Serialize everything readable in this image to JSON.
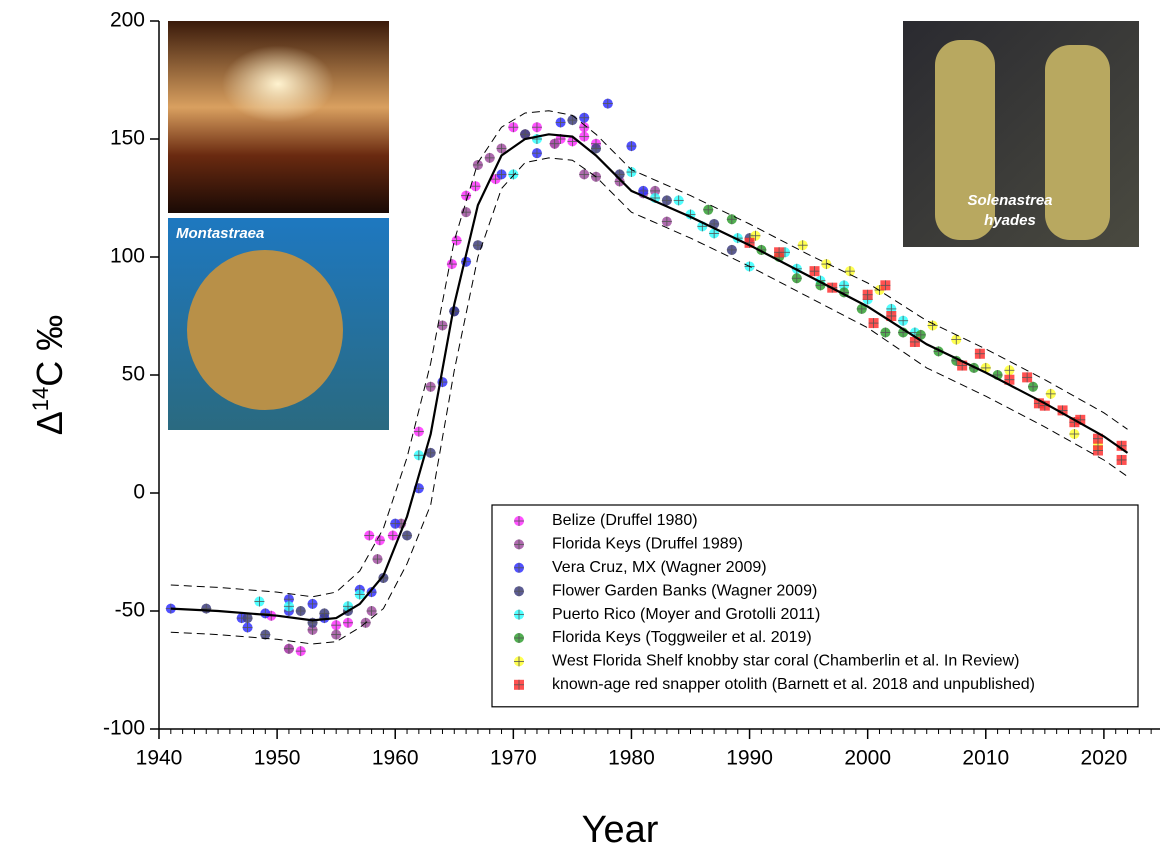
{
  "chart_data": {
    "type": "scatter",
    "xlabel": "Year",
    "ylabel_parts": [
      "Δ",
      "14",
      "C ‰"
    ],
    "annotations": [
      "Montastraea",
      "Solenastrea",
      "hyades"
    ],
    "xlim": [
      1940,
      2024.75
    ],
    "ylim": [
      -100,
      200
    ],
    "xticks": [
      1940,
      1950,
      1960,
      1970,
      1980,
      1990,
      2000,
      2010,
      2020
    ],
    "xminorticks": [
      1941,
      1942,
      1943,
      1944,
      1945,
      1946,
      1947,
      1948,
      1949,
      1951,
      1952,
      1953,
      1954,
      1955,
      1956,
      1957,
      1958,
      1959,
      1961,
      1962,
      1963,
      1964,
      1965,
      1966,
      1967,
      1968,
      1969,
      1971,
      1972,
      1973,
      1974,
      1975,
      1976,
      1977,
      1978,
      1979,
      1981,
      1982,
      1983,
      1984,
      1985,
      1986,
      1987,
      1988,
      1989,
      1991,
      1992,
      1993,
      1994,
      1995,
      1996,
      1997,
      1998,
      1999,
      2001,
      2002,
      2003,
      2004,
      2005,
      2006,
      2007,
      2008,
      2009,
      2011,
      2012,
      2013,
      2014,
      2015,
      2016,
      2017,
      2018,
      2019,
      2021,
      2022,
      2023,
      2024
    ],
    "yticks": [
      -100,
      -50,
      0,
      50,
      100,
      150,
      200
    ],
    "legend_position": "lower right",
    "series": [
      {
        "name": "Belize (Druffel 1980)",
        "color": "#ff33ff",
        "marker": "circle",
        "x": [
          1949.5,
          1951,
          1952,
          1955,
          1956,
          1957.8,
          1958.7,
          1959.8,
          1962,
          1964.8,
          1965.2,
          1966,
          1966.8,
          1968.5,
          1970,
          1972,
          1973.5,
          1975,
          1976,
          1976,
          1977,
          1974
        ],
        "values": [
          -52,
          -66,
          -67,
          -56,
          -55,
          -18,
          -20,
          -18,
          26,
          97,
          107,
          126,
          130,
          133,
          155,
          155,
          148,
          149,
          155,
          151,
          148,
          150
        ]
      },
      {
        "name": "Florida Keys (Druffel 1989)",
        "color": "#a050a0",
        "marker": "circle",
        "x": [
          1951,
          1953,
          1955,
          1957.5,
          1958,
          1958.5,
          1960.5,
          1963,
          1964,
          1966,
          1967,
          1968,
          1969,
          1971,
          1973.5,
          1976,
          1977,
          1979,
          1981,
          1982,
          1983
        ],
        "values": [
          -66,
          -58,
          -60,
          -55,
          -50,
          -28,
          -13,
          45,
          71,
          119,
          139,
          142,
          146,
          152,
          148,
          135,
          134,
          132,
          127,
          128,
          115
        ]
      },
      {
        "name": "Vera Cruz, MX (Wagner 2009)",
        "color": "#3333ff",
        "marker": "circle",
        "x": [
          1941,
          1947,
          1947.5,
          1949,
          1951,
          1951,
          1953,
          1954,
          1957,
          1958,
          1960,
          1962,
          1964,
          1965,
          1966,
          1969,
          1972,
          1974,
          1976,
          1978,
          1980,
          1981
        ],
        "values": [
          -49,
          -53,
          -57,
          -51,
          -45,
          -50,
          -47,
          -53,
          -41,
          -42,
          -13,
          2,
          47,
          77,
          98,
          135,
          144,
          157,
          159,
          165,
          147,
          128
        ]
      },
      {
        "name": "Flower Garden Banks (Wagner 2009)",
        "color": "#404080",
        "marker": "circle",
        "x": [
          1944,
          1947.5,
          1949,
          1952,
          1953,
          1954,
          1956,
          1959,
          1961,
          1963,
          1965,
          1967,
          1971,
          1975,
          1977,
          1979,
          1983,
          1987,
          1988.5,
          1990
        ],
        "values": [
          -49,
          -53,
          -60,
          -50,
          -55,
          -51,
          -50,
          -36,
          -18,
          17,
          77,
          105,
          152,
          158,
          146,
          135,
          124,
          114,
          103,
          108
        ]
      },
      {
        "name": "Puerto Rico (Moyer and Grotolli 2011)",
        "color": "#33ffff",
        "marker": "circle",
        "x": [
          1948.5,
          1951,
          1956,
          1957,
          1962,
          1970,
          1972,
          1980,
          1982,
          1984,
          1985,
          1986,
          1987,
          1989,
          1990,
          1993,
          1994,
          1996,
          1998,
          2000,
          2002,
          2003,
          2004
        ],
        "values": [
          -46,
          -48,
          -48,
          -43,
          16,
          135,
          150,
          136,
          125,
          124,
          118,
          113,
          110,
          108,
          96,
          102,
          95,
          90,
          88,
          82,
          78,
          73,
          68
        ]
      },
      {
        "name": "Florida Keys (Toggweiler et al. 2019)",
        "color": "#33a033",
        "marker": "circle",
        "x": [
          1986.5,
          1988.5,
          1991,
          1992.5,
          1994,
          1996,
          1998,
          1999.5,
          2001.5,
          2003,
          2004.5,
          2006,
          2007.5,
          2009,
          2011,
          2014
        ],
        "values": [
          120,
          116,
          103,
          100,
          91,
          88,
          85,
          78,
          68,
          68,
          67,
          60,
          56,
          53,
          50,
          45
        ]
      },
      {
        "name": "West Florida Shelf knobby star coral (Chamberlin et al. In Review)",
        "color": "#ffff33",
        "marker": "circle",
        "x": [
          1990.5,
          1994.5,
          1996.5,
          1998.5,
          2001,
          2005.5,
          2007.5,
          2010,
          2012,
          2015.5,
          2017.5,
          2019.5
        ],
        "values": [
          109,
          105,
          97,
          94,
          86,
          71,
          65,
          53,
          52,
          42,
          25,
          20
        ]
      },
      {
        "name": "known-age red snapper otolith (Barnett et al. 2018 and unpublished)",
        "color": "#ff3333",
        "marker": "square",
        "x": [
          1990,
          1992.5,
          1995.5,
          1997,
          2000,
          2000.5,
          2001.5,
          2002,
          2004,
          2008,
          2009.5,
          2012,
          2013.5,
          2014.5,
          2015,
          2016.5,
          2017.5,
          2018,
          2019.5,
          2019.5,
          2021.5,
          2021.5
        ],
        "values": [
          106,
          102,
          94,
          87,
          84,
          72,
          88,
          75,
          64,
          54,
          59,
          48,
          49,
          38,
          37,
          35,
          30,
          31,
          23,
          18,
          20,
          14
        ]
      }
    ],
    "fit": {
      "x": [
        1941,
        1945,
        1950,
        1953,
        1955,
        1957,
        1959,
        1961,
        1963,
        1965,
        1967,
        1969,
        1971,
        1973,
        1975,
        1977,
        1980,
        1985,
        1990,
        1995,
        2000,
        2005,
        2010,
        2015,
        2020,
        2022
      ],
      "y": [
        -49,
        -50,
        -52,
        -54,
        -53,
        -47,
        -35,
        -10,
        25,
        80,
        122,
        143,
        150,
        152,
        151,
        143,
        128,
        117,
        105,
        92,
        79,
        63,
        51,
        38,
        24,
        17
      ],
      "upper": [
        -39,
        -40,
        -42,
        -44,
        -42,
        -33,
        -15,
        15,
        55,
        107,
        140,
        155,
        161,
        162,
        160,
        152,
        137,
        126,
        114,
        101,
        89,
        73,
        61,
        48,
        34,
        27
      ],
      "lower": [
        -59,
        -60,
        -62,
        -64,
        -63,
        -57,
        -49,
        -30,
        -5,
        52,
        100,
        129,
        140,
        142,
        141,
        134,
        119,
        108,
        96,
        83,
        70,
        53,
        41,
        28,
        14,
        7
      ]
    }
  }
}
